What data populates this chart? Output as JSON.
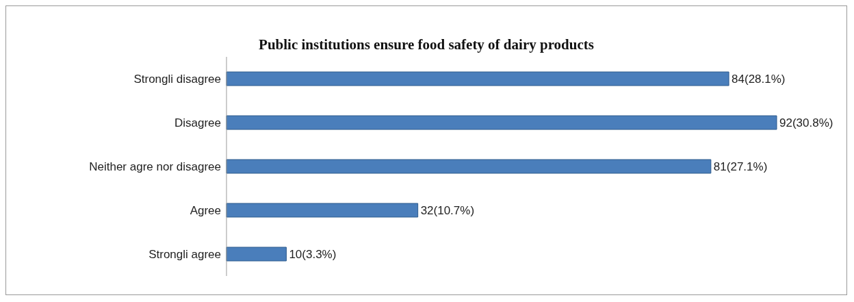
{
  "chart_data": {
    "type": "bar",
    "orientation": "horizontal",
    "title": "Public institutions ensure food safety of dairy products",
    "categories": [
      "Strongli disagree",
      "Disagree",
      "Neither agre nor disagree",
      "Agree",
      "Strongli agree"
    ],
    "values": [
      84,
      92,
      81,
      32,
      10
    ],
    "value_labels": [
      "84(28.1%)",
      "92(30.8%)",
      "81(27.1%)",
      "32(10.7%)",
      "10(3.3%)"
    ],
    "color": "#4a7ebb"
  }
}
